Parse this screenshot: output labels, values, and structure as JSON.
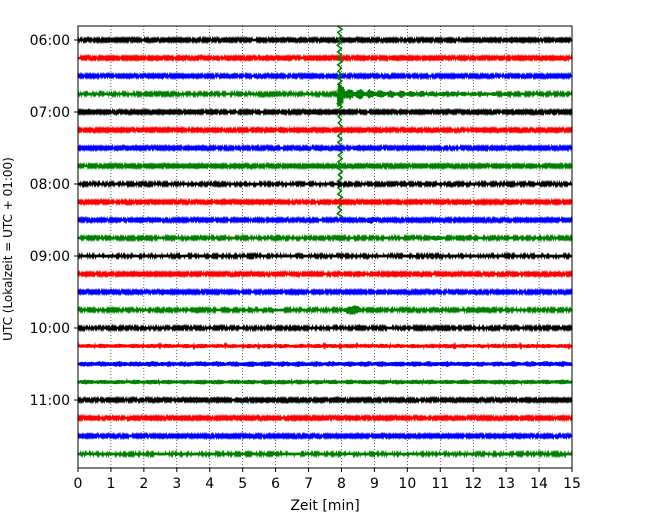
{
  "chart_data": {
    "type": "line",
    "title": "",
    "xlabel": "Zeit  [min]",
    "ylabel": "UTC (Lokalzeit = UTC + 01:00)",
    "xlim": [
      0,
      15
    ],
    "x_ticks": [
      0,
      1,
      2,
      3,
      4,
      5,
      6,
      7,
      8,
      9,
      10,
      11,
      12,
      13,
      14,
      15
    ],
    "y_tick_labels": [
      "06:00",
      "07:00",
      "08:00",
      "09:00",
      "10:00",
      "11:00"
    ],
    "y_tick_rows": [
      0,
      4,
      8,
      12,
      16,
      20
    ],
    "grid": {
      "x": true,
      "y": false
    },
    "trace_colors": [
      "#000000",
      "#ff0000",
      "#0000ff",
      "#008000"
    ],
    "traces": [
      {
        "row": 0,
        "start": "06:00",
        "base_amplitude": 1.2
      },
      {
        "row": 1,
        "start": "06:15",
        "base_amplitude": 1.2
      },
      {
        "row": 2,
        "start": "06:30",
        "base_amplitude": 1.2
      },
      {
        "row": 3,
        "start": "06:45",
        "base_amplitude": 1.3
      },
      {
        "row": 4,
        "start": "07:00",
        "base_amplitude": 1.2
      },
      {
        "row": 5,
        "start": "07:15",
        "base_amplitude": 1.2
      },
      {
        "row": 6,
        "start": "07:30",
        "base_amplitude": 1.2
      },
      {
        "row": 7,
        "start": "07:45",
        "base_amplitude": 1.2
      },
      {
        "row": 8,
        "start": "08:00",
        "base_amplitude": 1.3
      },
      {
        "row": 9,
        "start": "08:15",
        "base_amplitude": 1.2
      },
      {
        "row": 10,
        "start": "08:30",
        "base_amplitude": 1.2
      },
      {
        "row": 11,
        "start": "08:45",
        "base_amplitude": 1.3
      },
      {
        "row": 12,
        "start": "09:00",
        "base_amplitude": 1.4
      },
      {
        "row": 13,
        "start": "09:15",
        "base_amplitude": 1.2
      },
      {
        "row": 14,
        "start": "09:30",
        "base_amplitude": 1.2
      },
      {
        "row": 15,
        "start": "09:45",
        "base_amplitude": 1.3
      },
      {
        "row": 16,
        "start": "10:00",
        "base_amplitude": 1.3
      },
      {
        "row": 17,
        "start": "10:15",
        "base_amplitude": 2.2
      },
      {
        "row": 18,
        "start": "10:30",
        "base_amplitude": 2.8
      },
      {
        "row": 19,
        "start": "10:45",
        "base_amplitude": 2.4
      },
      {
        "row": 20,
        "start": "11:00",
        "base_amplitude": 1.2
      },
      {
        "row": 21,
        "start": "11:15",
        "base_amplitude": 1.2
      },
      {
        "row": 22,
        "start": "11:30",
        "base_amplitude": 1.2
      },
      {
        "row": 23,
        "start": "11:45",
        "base_amplitude": 1.4
      }
    ],
    "events": [
      {
        "row": 3,
        "t_start": 7.9,
        "t_end": 13.0,
        "peak_amplitude": 12,
        "tail_amplitude": 4,
        "clipped_over_rows": [
          0,
          10
        ]
      },
      {
        "row": 10,
        "t_start": 8.7,
        "t_end": 9.1,
        "peak_amplitude": 4
      },
      {
        "row": 11,
        "t_start": 10.6,
        "t_end": 11.2,
        "peak_amplitude": 3
      },
      {
        "row": 15,
        "t_start": 8.0,
        "t_end": 8.7,
        "peak_amplitude": 5
      }
    ]
  }
}
